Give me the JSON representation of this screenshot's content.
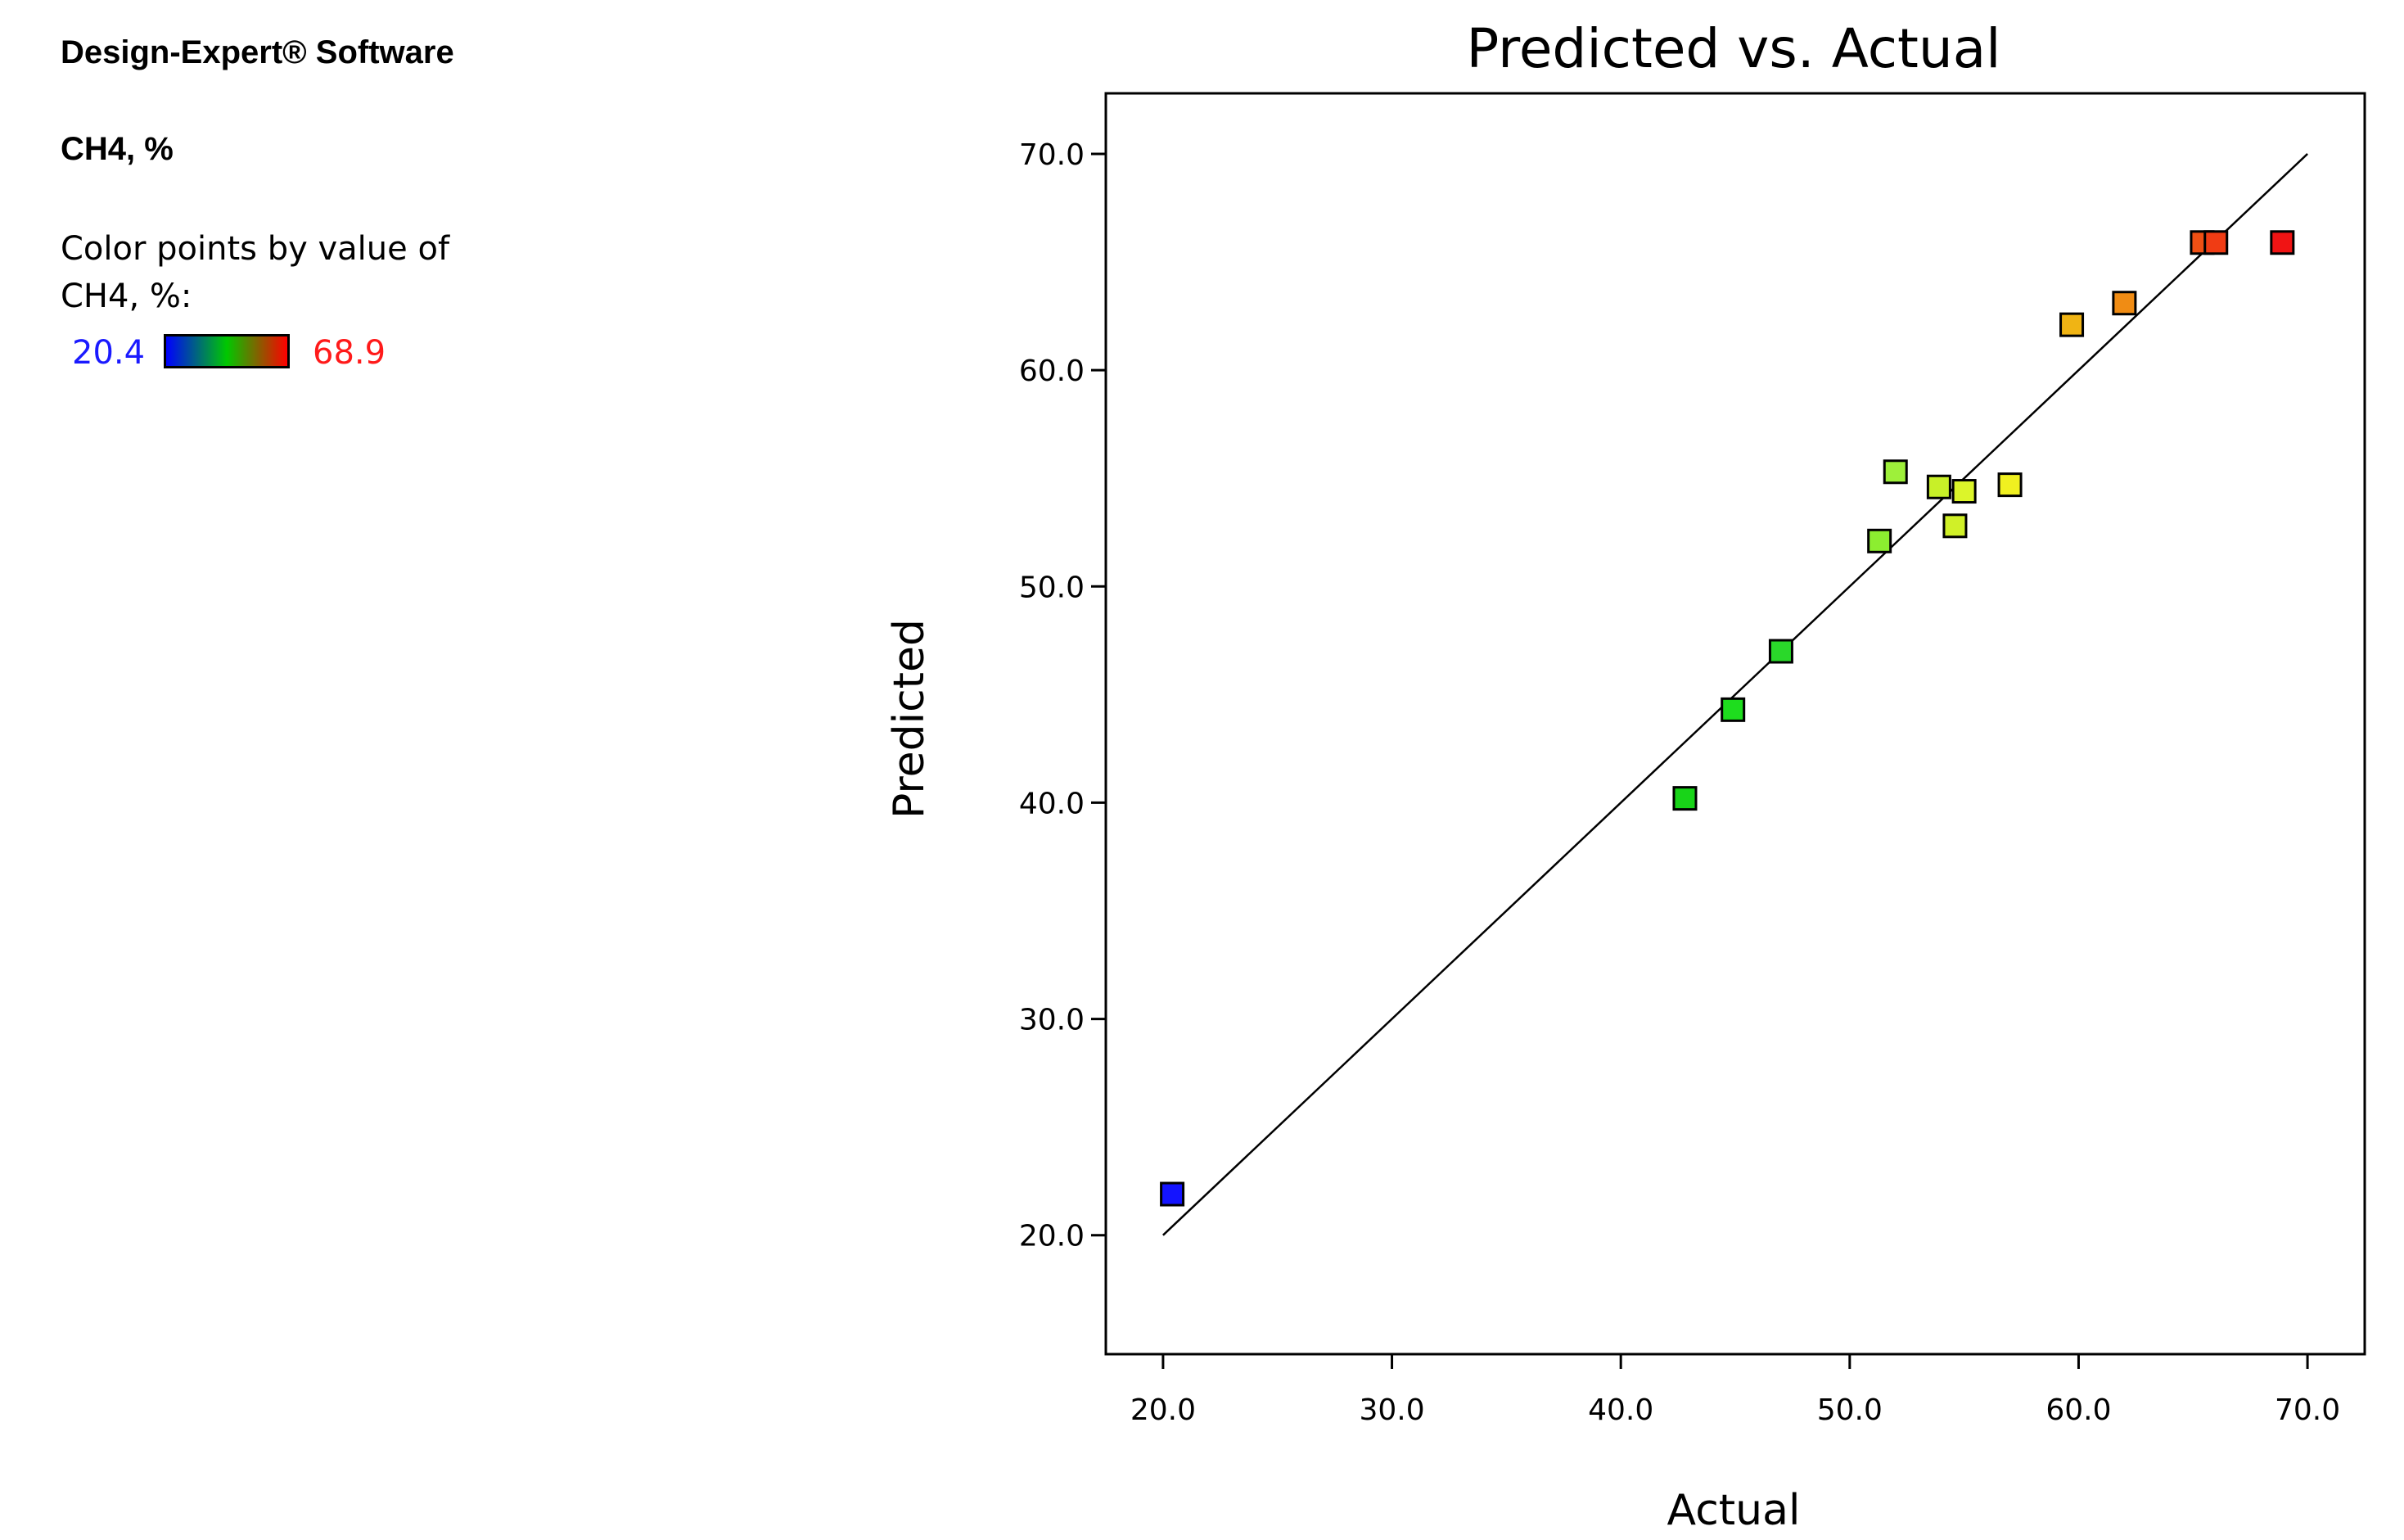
{
  "header": {
    "software": "Design-Expert® Software",
    "response": "CH4, %",
    "color_label": "Color points by value of CH4, %:",
    "legend_min": "20.4",
    "legend_max": "68.9"
  },
  "chart_data": {
    "type": "scatter",
    "title": "Predicted vs. Actual",
    "xlabel": "Actual",
    "ylabel": "Predicted",
    "xlim": [
      17.5,
      72.5
    ],
    "ylim": [
      14.5,
      72.8
    ],
    "xticks": [
      "20.0",
      "30.0",
      "40.0",
      "50.0",
      "60.0",
      "70.0"
    ],
    "yticks": [
      "20.0",
      "30.0",
      "40.0",
      "50.0",
      "60.0",
      "70.0"
    ],
    "reference_line": {
      "from": [
        20.0,
        20.0
      ],
      "to": [
        70.0,
        70.0
      ]
    },
    "color_scale": {
      "min": 20.4,
      "max": 68.9,
      "colors": [
        "#0000ff",
        "#00c800",
        "#ff0000"
      ]
    },
    "marker": "square",
    "points": [
      {
        "x": 20.4,
        "y": 21.9,
        "color": "#1414ff"
      },
      {
        "x": 42.8,
        "y": 40.2,
        "color": "#18d418"
      },
      {
        "x": 44.9,
        "y": 44.3,
        "color": "#1edd1e"
      },
      {
        "x": 47.0,
        "y": 47.0,
        "color": "#2ad82a"
      },
      {
        "x": 51.3,
        "y": 52.1,
        "color": "#8cee30"
      },
      {
        "x": 52.0,
        "y": 55.3,
        "color": "#9ef03a"
      },
      {
        "x": 53.9,
        "y": 54.6,
        "color": "#c8f028"
      },
      {
        "x": 54.6,
        "y": 52.8,
        "color": "#d0f028"
      },
      {
        "x": 55.0,
        "y": 54.4,
        "color": "#dcf52a"
      },
      {
        "x": 57.0,
        "y": 54.7,
        "color": "#f0f020"
      },
      {
        "x": 59.7,
        "y": 62.1,
        "color": "#f0b414"
      },
      {
        "x": 62.0,
        "y": 63.1,
        "color": "#f08c14"
      },
      {
        "x": 65.4,
        "y": 65.9,
        "color": "#f05014"
      },
      {
        "x": 66.0,
        "y": 65.9,
        "color": "#f03c14"
      },
      {
        "x": 68.9,
        "y": 65.9,
        "color": "#f01414"
      }
    ]
  }
}
